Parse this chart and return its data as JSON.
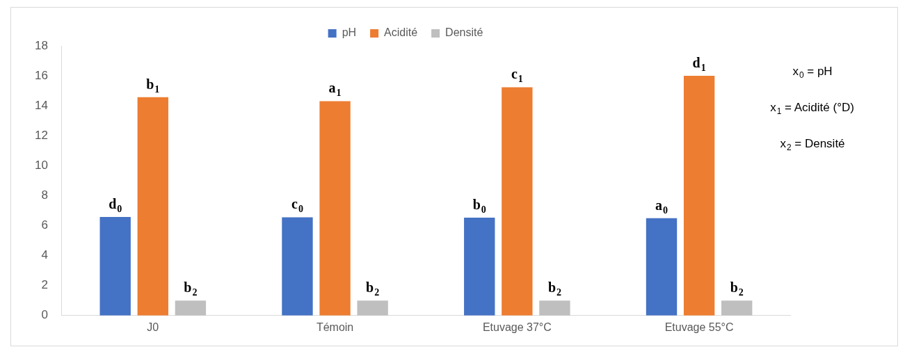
{
  "chart_data": {
    "type": "bar",
    "categories": [
      "J0",
      "Témoin",
      "Etuvage 37°C",
      "Etuvage 55°C"
    ],
    "series": [
      {
        "name": "pH",
        "color": "#4472c4",
        "values": [
          6.58,
          6.56,
          6.54,
          6.5
        ]
      },
      {
        "name": "Acidité",
        "color": "#ed7d31",
        "values": [
          14.58,
          14.31,
          15.24,
          16.0
        ]
      },
      {
        "name": "Densité",
        "color": "#bfbfbf",
        "values": [
          1.0,
          1.0,
          1.0,
          1.0
        ]
      }
    ],
    "ylim": [
      0,
      18
    ],
    "yticks": [
      0,
      2,
      4,
      6,
      8,
      10,
      12,
      14,
      16,
      18
    ],
    "grid": false,
    "legend": "top",
    "annotations": [
      "d$_{0}$",
      "b$_{1}$",
      "b$_{2}$",
      "c$_{0}$",
      "a$_{1}$",
      "b$_{2}$",
      "b$_{0}$",
      "c$_{1}$",
      "b$_{2}$",
      "a$_{0}$",
      "d$_{1}$",
      "b$_{2}$",
      "x$_{0}$ = pH",
      "x$_{1}$ = Acidité (°D)",
      "x$_{2}$ = Densité"
    ]
  }
}
